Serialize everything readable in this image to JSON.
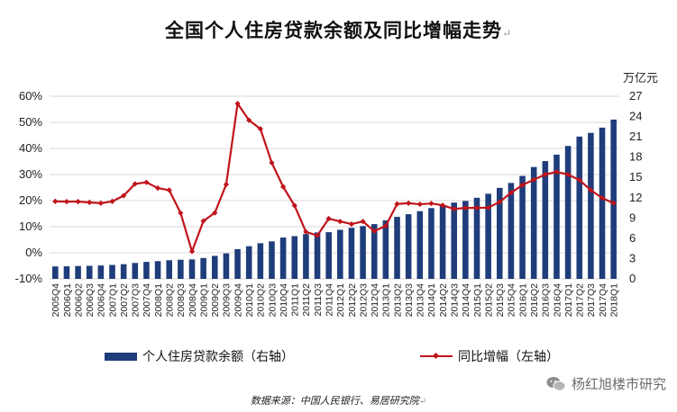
{
  "title": "全国个人住房贷款余额及同比增幅走势",
  "title_mark": "↵",
  "legend": {
    "bar_label": "个人住房贷款余额（右轴）",
    "line_label": "同比增幅（左轴）"
  },
  "source": "数据来源：中国人民银行、易居研究院",
  "source_mark": "↵",
  "watermark": "杨红旭楼市研究",
  "colors": {
    "bar": "#1f3d7a",
    "line": "#c0141b"
  },
  "chart_data": {
    "type": "bar+line",
    "right_axis_unit": "万亿元",
    "left_ylim": [
      -0.1,
      0.6
    ],
    "left_ticks": [
      "-10%",
      "0%",
      "10%",
      "20%",
      "30%",
      "40%",
      "50%",
      "60%"
    ],
    "right_ylim": [
      0,
      27
    ],
    "right_ticks": [
      "0",
      "3",
      "6",
      "9",
      "12",
      "15",
      "18",
      "21",
      "24",
      "27"
    ],
    "categories": [
      "2005Q4",
      "2006Q1",
      "2006Q2",
      "2006Q3",
      "2006Q4",
      "2007Q1",
      "2007Q2",
      "2007Q3",
      "2007Q4",
      "2008Q1",
      "2008Q2",
      "2008Q3",
      "2008Q4",
      "2009Q1",
      "2009Q2",
      "2009Q3",
      "2009Q4",
      "2010Q1",
      "2010Q2",
      "2010Q3",
      "2010Q4",
      "2011Q1",
      "2011Q2",
      "2011Q3",
      "2011Q4",
      "2012Q1",
      "2012Q2",
      "2012Q3",
      "2012Q4",
      "2013Q1",
      "2013Q2",
      "2013Q3",
      "2013Q4",
      "2014Q1",
      "2014Q2",
      "2014Q3",
      "2014Q4",
      "2015Q1",
      "2015Q2",
      "2015Q3",
      "2015Q4",
      "2016Q1",
      "2016Q2",
      "2016Q3",
      "2016Q4",
      "2017Q1",
      "2017Q2",
      "2017Q3",
      "2017Q4",
      "2018Q1"
    ],
    "series": [
      {
        "name": "个人住房贷款余额（右轴）",
        "type": "bar",
        "axis": "right",
        "values": [
          1.84,
          1.86,
          1.9,
          1.93,
          1.98,
          2.06,
          2.17,
          2.35,
          2.51,
          2.62,
          2.76,
          2.83,
          2.88,
          3.08,
          3.4,
          3.77,
          4.4,
          4.83,
          5.27,
          5.54,
          6.11,
          6.32,
          6.62,
          6.86,
          6.9,
          7.25,
          7.55,
          7.81,
          8.1,
          8.65,
          9.17,
          9.56,
          10.01,
          10.47,
          10.92,
          11.28,
          11.52,
          11.99,
          12.58,
          13.46,
          14.18,
          15.22,
          16.54,
          17.41,
          18.37,
          19.65,
          21.04,
          21.58,
          22.36,
          23.55
        ]
      },
      {
        "name": "同比增幅（左轴）",
        "type": "line",
        "axis": "left",
        "values": [
          0.197,
          0.196,
          0.196,
          0.193,
          0.19,
          0.197,
          0.219,
          0.264,
          0.27,
          0.248,
          0.24,
          0.152,
          0.005,
          0.122,
          0.153,
          0.262,
          0.572,
          0.508,
          0.475,
          0.345,
          0.253,
          0.181,
          0.08,
          0.066,
          0.131,
          0.12,
          0.11,
          0.12,
          0.083,
          0.103,
          0.187,
          0.19,
          0.186,
          0.189,
          0.182,
          0.168,
          0.172,
          0.172,
          0.173,
          0.195,
          0.23,
          0.26,
          0.28,
          0.3,
          0.31,
          0.3,
          0.279,
          0.24,
          0.21,
          0.19
        ]
      }
    ]
  }
}
